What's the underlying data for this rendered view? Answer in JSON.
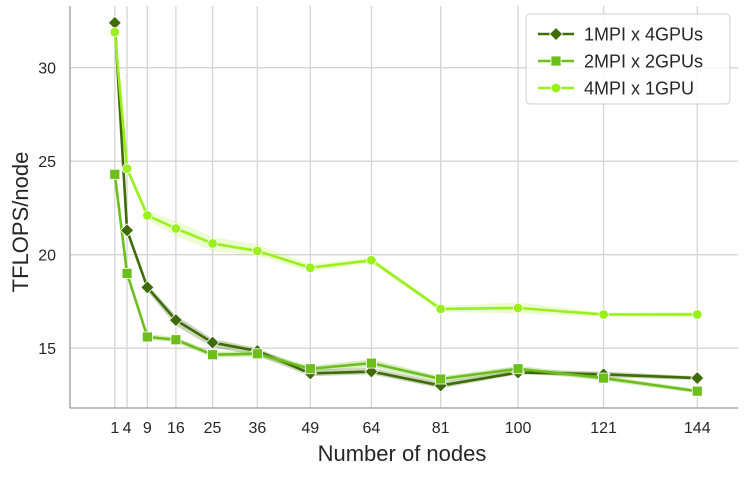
{
  "chart_data": {
    "type": "line",
    "xlabel": "Number of nodes",
    "ylabel": "TFLOPS/node",
    "x": [
      1,
      4,
      9,
      16,
      25,
      36,
      49,
      64,
      81,
      100,
      121,
      144
    ],
    "x_ticks": [
      "1",
      "4",
      "9",
      "16",
      "25",
      "36",
      "49",
      "64",
      "81",
      "100",
      "121",
      "144"
    ],
    "y_ticks": [
      "15",
      "20",
      "25",
      "30"
    ],
    "xlim": [
      -10,
      154
    ],
    "ylim": [
      11.8,
      33.3
    ],
    "grid": true,
    "legend_position": "top-right",
    "series": [
      {
        "name": "1MPI x 4GPUs",
        "marker": "diamond",
        "color": "#3f6b08",
        "band_color": "#3f6b08",
        "values": [
          32.4,
          21.3,
          18.25,
          16.5,
          15.3,
          14.85,
          13.65,
          13.75,
          13.0,
          13.7,
          13.6,
          13.4
        ],
        "lower": [
          32.3,
          21.2,
          18.05,
          16.2,
          15.05,
          14.6,
          13.5,
          13.6,
          12.85,
          13.6,
          13.45,
          13.3
        ],
        "upper": [
          32.5,
          21.4,
          18.4,
          16.75,
          15.5,
          15.0,
          13.85,
          13.95,
          13.2,
          13.85,
          13.75,
          13.5
        ]
      },
      {
        "name": "2MPI x 2GPUs",
        "marker": "square",
        "color": "#6dbd1c",
        "band_color": "#6dbd1c",
        "values": [
          24.3,
          19.0,
          15.6,
          15.45,
          14.65,
          14.7,
          13.9,
          14.2,
          13.35,
          13.9,
          13.4,
          12.7
        ],
        "lower": [
          24.2,
          18.9,
          15.45,
          15.3,
          14.5,
          14.55,
          13.75,
          14.0,
          13.2,
          13.75,
          13.25,
          12.6
        ],
        "upper": [
          24.4,
          19.1,
          15.75,
          15.6,
          14.8,
          14.85,
          14.05,
          14.4,
          13.5,
          14.05,
          13.55,
          12.8
        ]
      },
      {
        "name": "4MPI x 1GPU",
        "marker": "circle",
        "color": "#9af01a",
        "band_color": "#b9f25a",
        "values": [
          31.9,
          24.6,
          22.1,
          21.4,
          20.6,
          20.2,
          19.3,
          19.7,
          17.1,
          17.15,
          16.8,
          16.8
        ],
        "lower": [
          31.7,
          24.4,
          21.85,
          21.0,
          20.2,
          19.95,
          19.1,
          19.55,
          16.95,
          16.85,
          16.7,
          16.65
        ],
        "upper": [
          32.1,
          24.8,
          22.35,
          21.8,
          20.95,
          20.55,
          19.5,
          19.85,
          17.25,
          17.45,
          16.9,
          16.95
        ]
      }
    ]
  }
}
